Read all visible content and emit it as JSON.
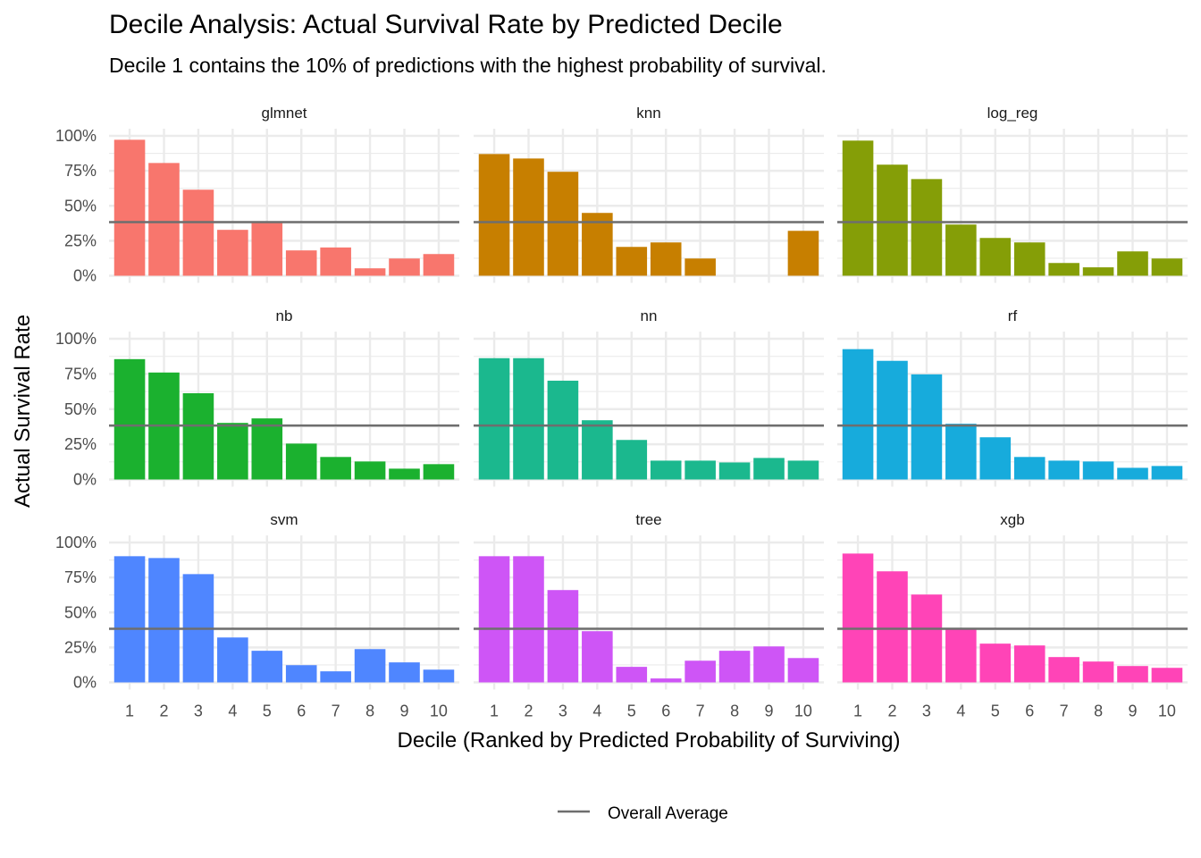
{
  "chart_data": {
    "type": "bar",
    "title": "Decile Analysis: Actual Survival Rate by Predicted Decile",
    "subtitle": "Decile 1 contains the 10% of predictions with the highest probability of survival.",
    "xlabel": "Decile (Ranked by Predicted Probability of Surviving)",
    "ylabel": "Actual Survival Rate",
    "categories": [
      "1",
      "2",
      "3",
      "4",
      "5",
      "6",
      "7",
      "8",
      "9",
      "10"
    ],
    "ylim": [
      0,
      100
    ],
    "yticks": [
      "0%",
      "25%",
      "50%",
      "75%",
      "100%"
    ],
    "ytick_values": [
      0,
      25,
      50,
      75,
      100
    ],
    "grid": true,
    "facet_layout": "3x3",
    "reference_line": {
      "name": "Overall Average",
      "value": 38.3,
      "color": "#6e6e6e"
    },
    "legend": {
      "position": "bottom",
      "entries": [
        "Overall Average"
      ]
    },
    "panels": [
      {
        "name": "glmnet",
        "color": "#F8766D",
        "values": [
          97.2,
          80.6,
          61.5,
          32.8,
          38.3,
          18.1,
          20.2,
          5.3,
          12.3,
          15.5
        ]
      },
      {
        "name": "knn",
        "color": "#C77F00",
        "values": [
          87.0,
          83.8,
          74.3,
          44.9,
          20.6,
          23.8,
          12.3,
          0.0,
          0.0,
          32.1
        ]
      },
      {
        "name": "log_reg",
        "color": "#859E07",
        "values": [
          96.6,
          79.4,
          69.1,
          36.6,
          27.0,
          23.8,
          9.1,
          6.0,
          17.4,
          12.3
        ]
      },
      {
        "name": "nb",
        "color": "#1BB12F",
        "values": [
          85.5,
          76.0,
          61.3,
          40.2,
          43.4,
          25.5,
          16.0,
          12.8,
          7.7,
          10.9
        ]
      },
      {
        "name": "nn",
        "color": "#1BB88E",
        "values": [
          86.2,
          86.2,
          70.2,
          42.1,
          28.1,
          13.4,
          13.4,
          12.1,
          15.3,
          13.4
        ]
      },
      {
        "name": "rf",
        "color": "#17ABDC",
        "values": [
          92.6,
          84.3,
          74.7,
          39.6,
          30.0,
          16.0,
          13.4,
          12.8,
          8.3,
          9.6
        ]
      },
      {
        "name": "svm",
        "color": "#4F86FF",
        "values": [
          90.2,
          88.9,
          77.4,
          32.1,
          22.6,
          12.3,
          7.9,
          23.8,
          14.3,
          9.1
        ]
      },
      {
        "name": "tree",
        "color": "#CE55F6",
        "values": [
          90.2,
          90.2,
          66.0,
          36.6,
          11.1,
          2.8,
          15.5,
          22.6,
          25.7,
          17.4
        ]
      },
      {
        "name": "xgb",
        "color": "#FF44B7",
        "values": [
          92.1,
          79.4,
          62.8,
          38.5,
          27.7,
          26.4,
          18.1,
          14.9,
          11.7,
          10.4
        ]
      }
    ]
  }
}
